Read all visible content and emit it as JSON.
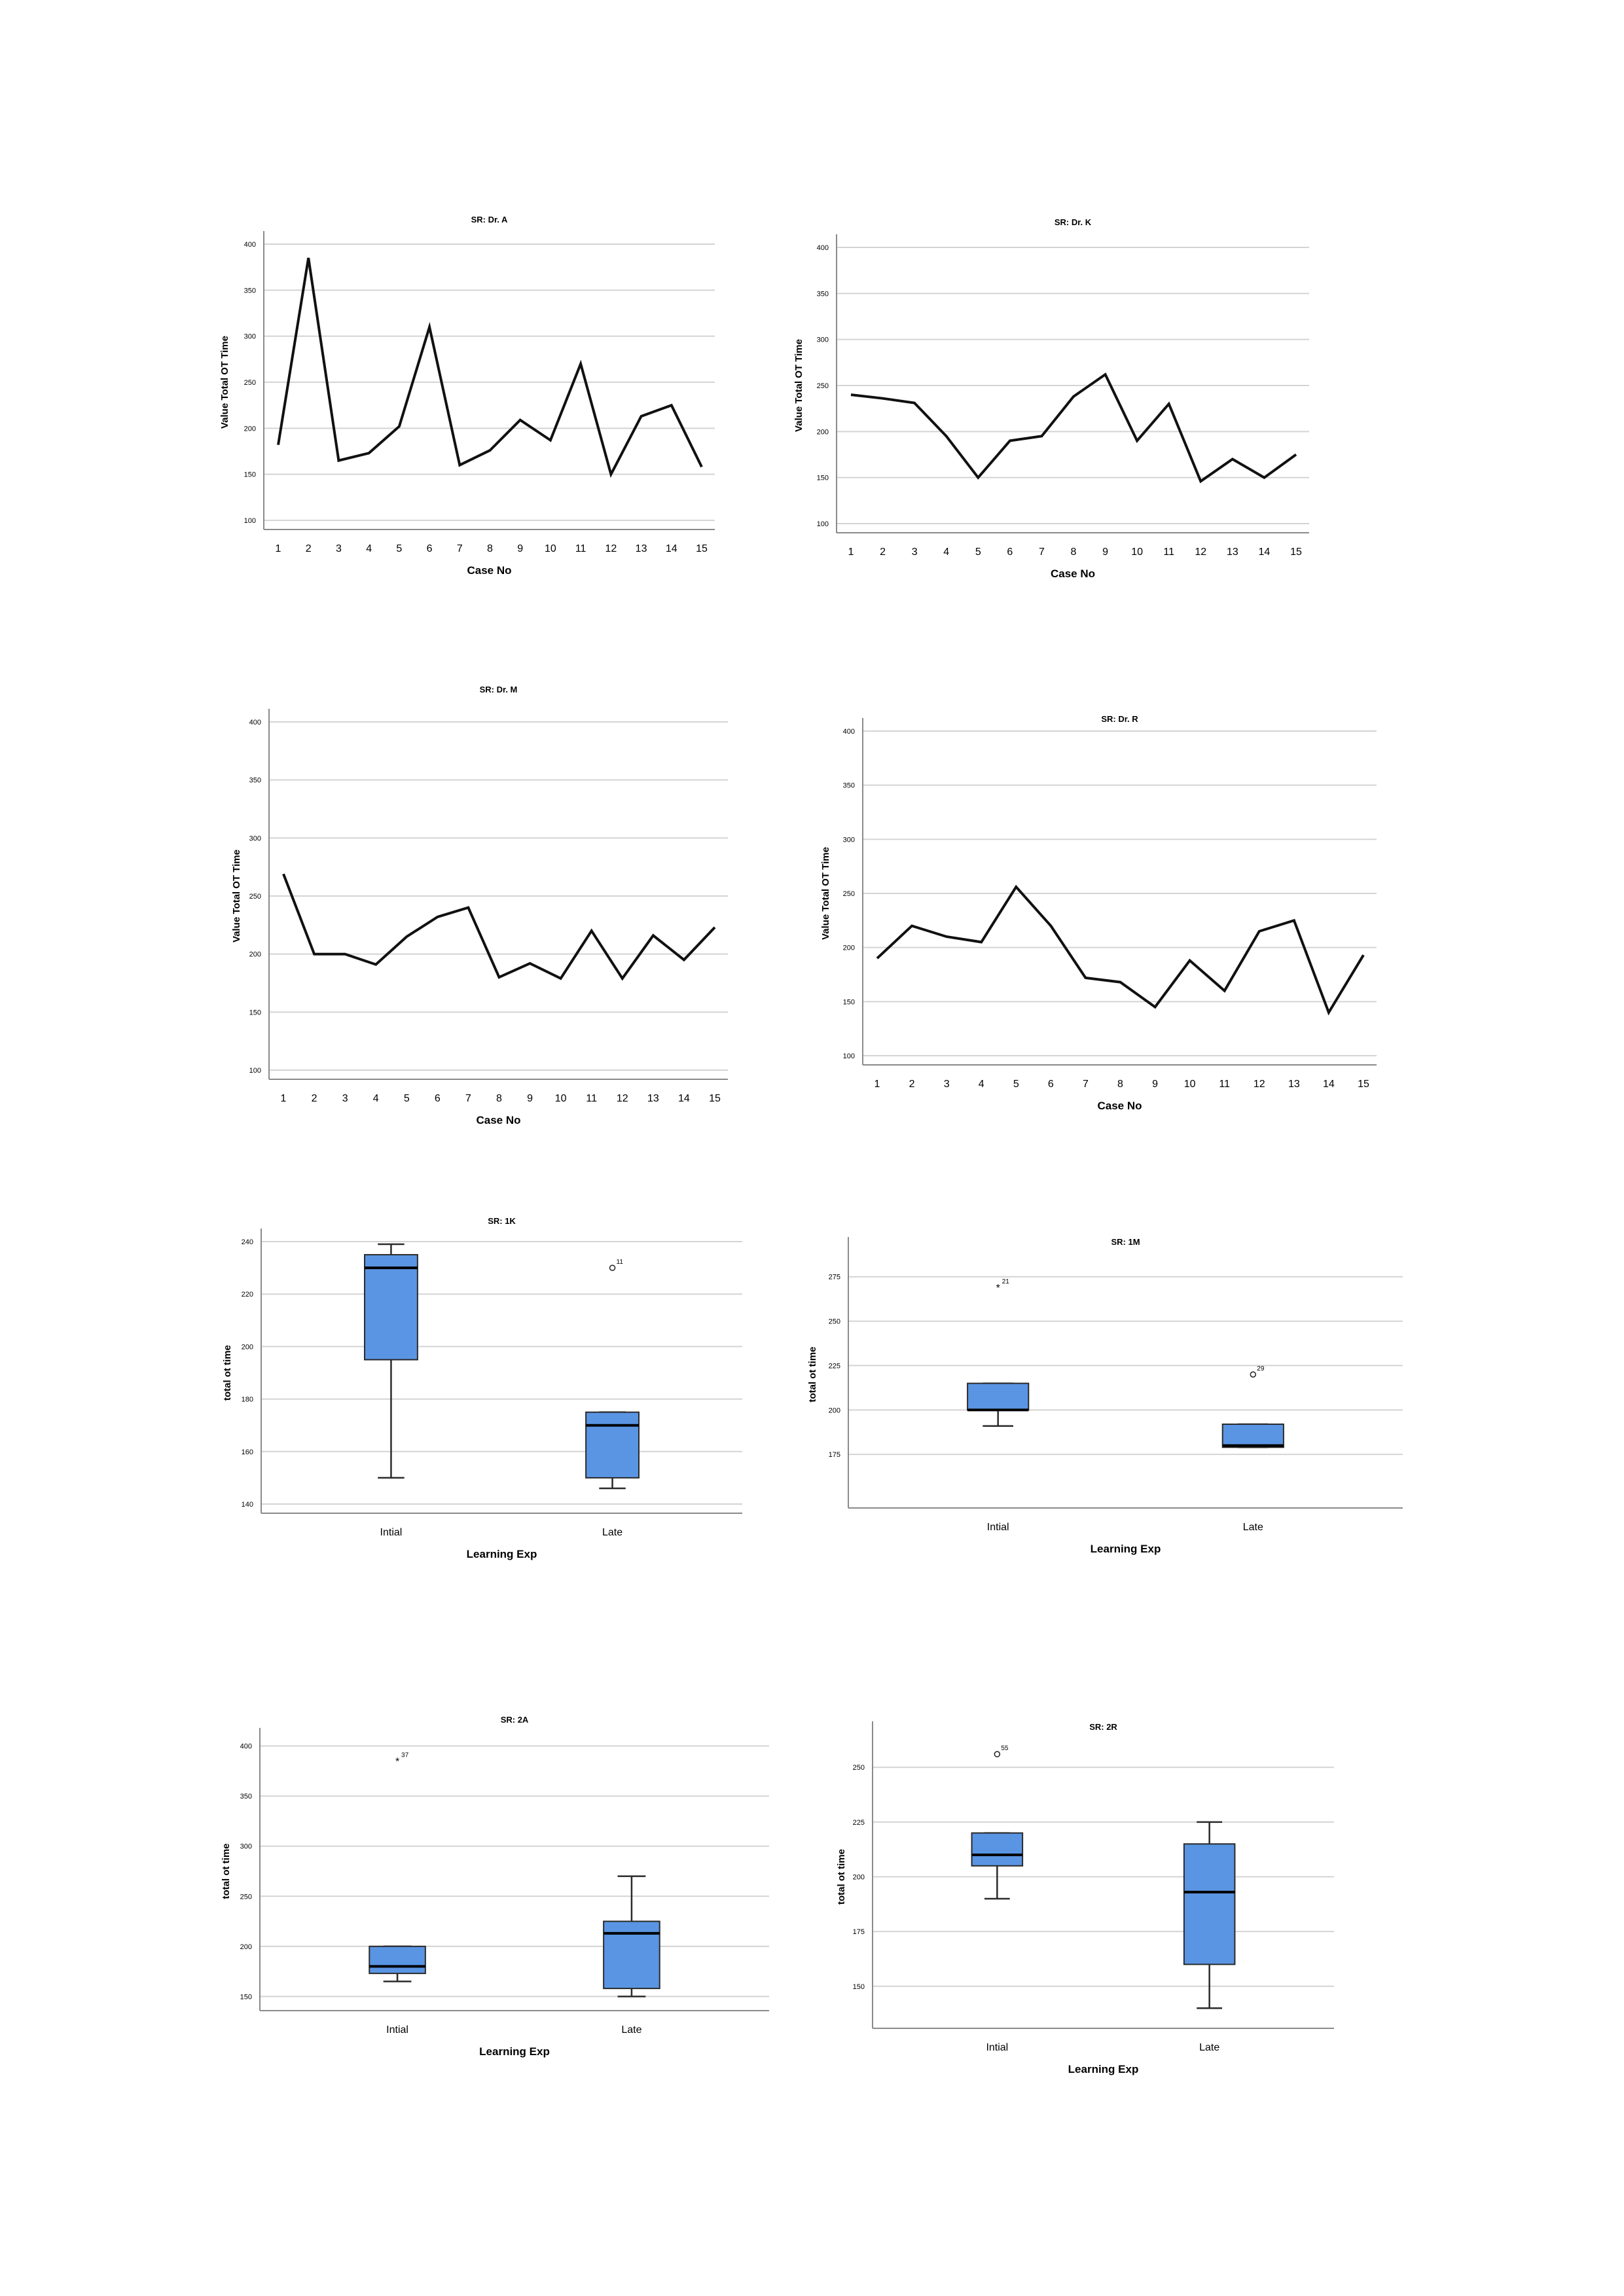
{
  "chart_data": [
    {
      "type": "line",
      "title": "SR: Dr. A",
      "xlabel": "Case No",
      "ylabel": "Value Total OT Time",
      "categories": [
        "1",
        "2",
        "3",
        "4",
        "5",
        "6",
        "7",
        "8",
        "9",
        "10",
        "11",
        "12",
        "13",
        "14",
        "15"
      ],
      "values": [
        182,
        385,
        165,
        173,
        202,
        310,
        160,
        176,
        209,
        187,
        270,
        150,
        213,
        225,
        158
      ],
      "ylim": [
        100,
        400
      ],
      "yticks": [
        "100",
        "150",
        "200",
        "250",
        "300",
        "350",
        "400"
      ],
      "grid": true
    },
    {
      "type": "line",
      "title": "SR: Dr. K",
      "xlabel": "Case No",
      "ylabel": "Value Total OT Time",
      "categories": [
        "1",
        "2",
        "3",
        "4",
        "5",
        "6",
        "7",
        "8",
        "9",
        "10",
        "11",
        "12",
        "13",
        "14",
        "15"
      ],
      "values": [
        240,
        236,
        231,
        195,
        150,
        190,
        195,
        238,
        262,
        190,
        230,
        146,
        170,
        150,
        175
      ],
      "ylim": [
        100,
        400
      ],
      "yticks": [
        "100",
        "150",
        "200",
        "250",
        "300",
        "350",
        "400"
      ],
      "grid": true
    },
    {
      "type": "line",
      "title": "SR: Dr. M",
      "xlabel": "Case No",
      "ylabel": "Value Total OT Time",
      "categories": [
        "1",
        "2",
        "3",
        "4",
        "5",
        "6",
        "7",
        "8",
        "9",
        "10",
        "11",
        "12",
        "13",
        "14",
        "15"
      ],
      "values": [
        269,
        200,
        200,
        191,
        215,
        232,
        240,
        180,
        192,
        179,
        220,
        179,
        216,
        195,
        223
      ],
      "ylim": [
        100,
        400
      ],
      "yticks": [
        "100",
        "150",
        "200",
        "250",
        "300",
        "350",
        "400"
      ],
      "grid": true
    },
    {
      "type": "line",
      "title": "SR: Dr. R",
      "xlabel": "Case No",
      "ylabel": "Value Total OT Time",
      "categories": [
        "1",
        "2",
        "3",
        "4",
        "5",
        "6",
        "7",
        "8",
        "9",
        "10",
        "11",
        "12",
        "13",
        "14",
        "15"
      ],
      "values": [
        190,
        220,
        210,
        205,
        256,
        220,
        172,
        168,
        145,
        188,
        160,
        215,
        225,
        140,
        193
      ],
      "ylim": [
        100,
        400
      ],
      "yticks": [
        "100",
        "150",
        "200",
        "250",
        "300",
        "350",
        "400"
      ],
      "grid": true
    },
    {
      "type": "box",
      "title": "SR: 1K",
      "xlabel": "Learning Exp",
      "ylabel": "total ot time",
      "categories": [
        "Intial",
        "Late"
      ],
      "boxes": [
        {
          "min": 150,
          "q1": 195,
          "median": 230,
          "q3": 235,
          "max": 239,
          "outliers": []
        },
        {
          "min": 146,
          "q1": 150,
          "median": 170,
          "q3": 175,
          "max": 175,
          "outliers": [
            {
              "value": 230,
              "label": "11",
              "symbol": "circle"
            }
          ]
        }
      ],
      "ylim": [
        140,
        240
      ],
      "yticks": [
        "140",
        "160",
        "180",
        "200",
        "220",
        "240"
      ],
      "grid": true
    },
    {
      "type": "box",
      "title": "SR: 1M",
      "xlabel": "Learning Exp",
      "ylabel": "total ot time",
      "categories": [
        "Intial",
        "Late"
      ],
      "boxes": [
        {
          "min": 191,
          "q1": 200,
          "median": 200,
          "q3": 215,
          "max": 215,
          "outliers": [
            {
              "value": 269,
              "label": "21",
              "symbol": "star"
            }
          ]
        },
        {
          "min": 179,
          "q1": 179,
          "median": 180,
          "q3": 192,
          "max": 192,
          "outliers": [
            {
              "value": 220,
              "label": "29",
              "symbol": "circle"
            }
          ]
        }
      ],
      "ylim": [
        150,
        290
      ],
      "yticks": [
        "175",
        "200",
        "225",
        "250",
        "275"
      ],
      "grid": true
    },
    {
      "type": "box",
      "title": "SR: 2A",
      "xlabel": "Learning Exp",
      "ylabel": "total ot time",
      "categories": [
        "Intial",
        "Late"
      ],
      "boxes": [
        {
          "min": 165,
          "q1": 173,
          "median": 180,
          "q3": 200,
          "max": 200,
          "outliers": [
            {
              "value": 385,
              "label": "37",
              "symbol": "star"
            }
          ]
        },
        {
          "min": 150,
          "q1": 158,
          "median": 213,
          "q3": 225,
          "max": 270,
          "outliers": []
        }
      ],
      "ylim": [
        145,
        405
      ],
      "yticks": [
        "150",
        "200",
        "250",
        "300",
        "350",
        "400"
      ],
      "grid": true
    },
    {
      "type": "box",
      "title": "SR: 2R",
      "xlabel": "Learning Exp",
      "ylabel": "total ot time",
      "categories": [
        "Intial",
        "Late"
      ],
      "boxes": [
        {
          "min": 190,
          "q1": 205,
          "median": 210,
          "q3": 220,
          "max": 220,
          "outliers": [
            {
              "value": 256,
              "label": "55",
              "symbol": "circle"
            }
          ]
        },
        {
          "min": 140,
          "q1": 160,
          "median": 193,
          "q3": 215,
          "max": 225,
          "outliers": []
        }
      ],
      "ylim": [
        135,
        265
      ],
      "yticks": [
        "150",
        "175",
        "200",
        "225",
        "250"
      ],
      "grid": true
    }
  ],
  "colors": {
    "box_fill": "#5a95e3",
    "box_stroke": "#2a2a2a",
    "line": "#111111",
    "grid": "#d4d4d4",
    "axis": "#8a8a8a"
  }
}
